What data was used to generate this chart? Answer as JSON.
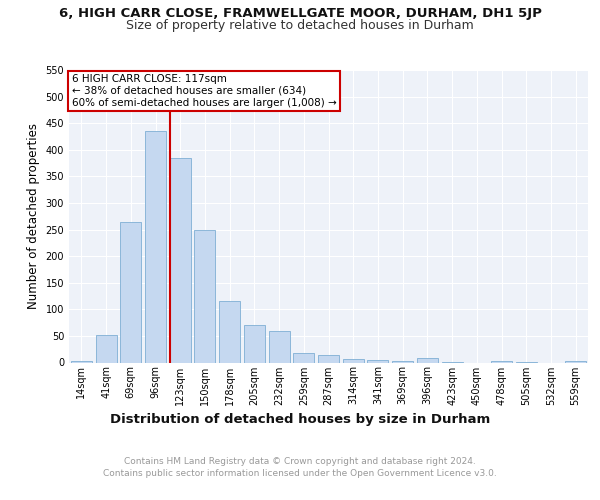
{
  "title": "6, HIGH CARR CLOSE, FRAMWELLGATE MOOR, DURHAM, DH1 5JP",
  "subtitle": "Size of property relative to detached houses in Durham",
  "xlabel": "Distribution of detached houses by size in Durham",
  "ylabel": "Number of detached properties",
  "categories": [
    "14sqm",
    "41sqm",
    "69sqm",
    "96sqm",
    "123sqm",
    "150sqm",
    "178sqm",
    "205sqm",
    "232sqm",
    "259sqm",
    "287sqm",
    "314sqm",
    "341sqm",
    "369sqm",
    "396sqm",
    "423sqm",
    "450sqm",
    "478sqm",
    "505sqm",
    "532sqm",
    "559sqm"
  ],
  "values": [
    3,
    51,
    265,
    435,
    385,
    250,
    115,
    70,
    59,
    18,
    14,
    7,
    5,
    2,
    8,
    1,
    0,
    3,
    1,
    0,
    3
  ],
  "bar_color": "#c5d8f0",
  "bar_edgecolor": "#7fafd4",
  "vline_color": "#cc0000",
  "vline_pos": 3.57,
  "annotation_text": "6 HIGH CARR CLOSE: 117sqm\n← 38% of detached houses are smaller (634)\n60% of semi-detached houses are larger (1,008) →",
  "annotation_box_color": "#ffffff",
  "annotation_box_edgecolor": "#cc0000",
  "ylim": [
    0,
    550
  ],
  "yticks": [
    0,
    50,
    100,
    150,
    200,
    250,
    300,
    350,
    400,
    450,
    500,
    550
  ],
  "background_color": "#eef2f9",
  "grid_color": "#ffffff",
  "footer_line1": "Contains HM Land Registry data © Crown copyright and database right 2024.",
  "footer_line2": "Contains public sector information licensed under the Open Government Licence v3.0.",
  "title_fontsize": 9.5,
  "subtitle_fontsize": 9,
  "tick_fontsize": 7,
  "ylabel_fontsize": 8.5,
  "xlabel_fontsize": 9.5,
  "footer_fontsize": 6.5
}
